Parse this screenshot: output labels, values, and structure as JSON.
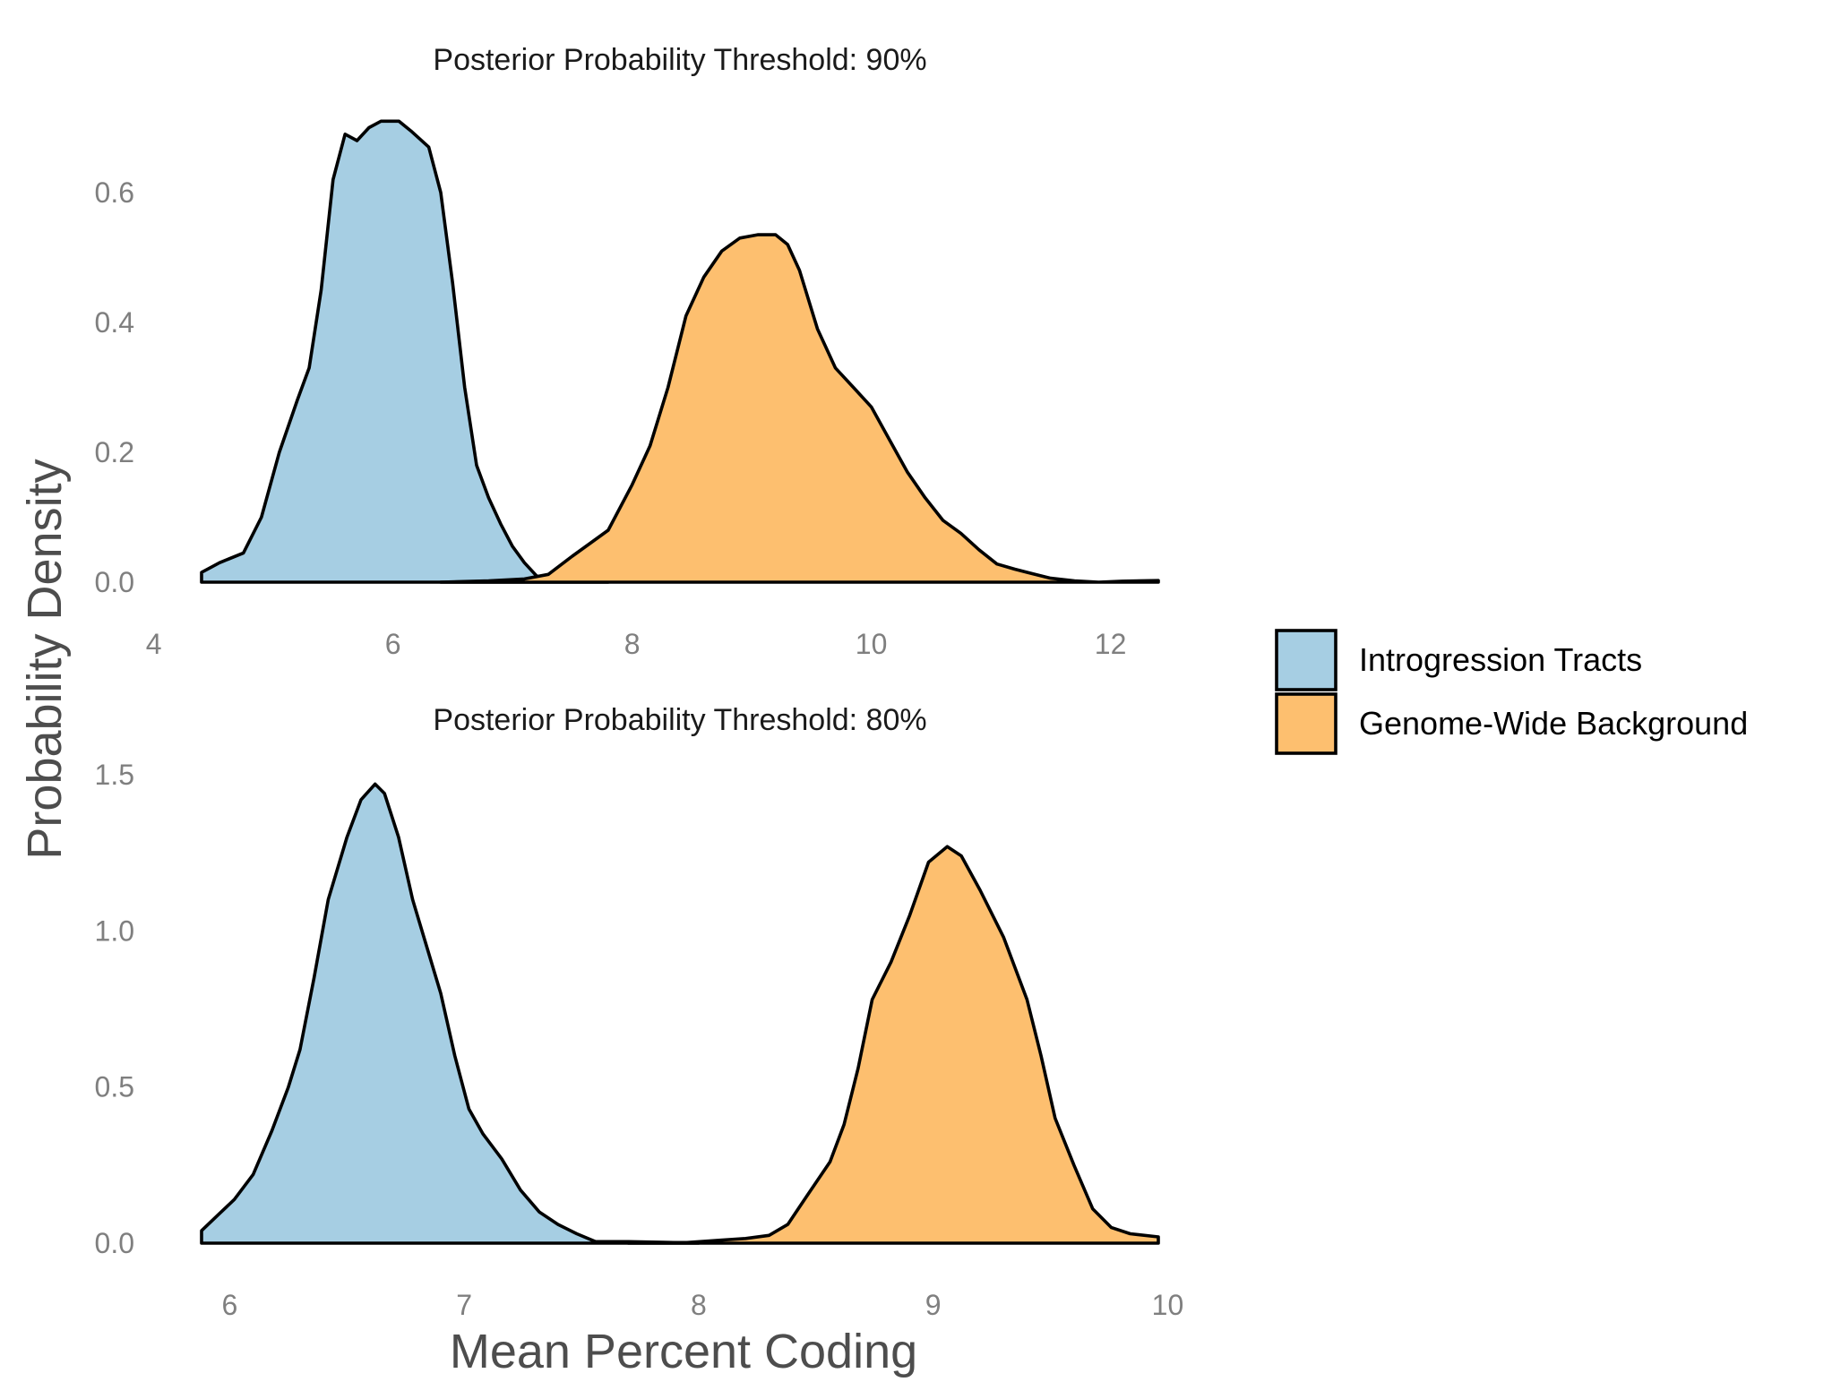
{
  "chart_data": {
    "type": "area",
    "ylabel": "Probability Density",
    "xlabel": "Mean Percent Coding",
    "legend": {
      "placement": "right",
      "entries": [
        {
          "name": "Introgression Tracts",
          "color": "#A6CEE3"
        },
        {
          "name": "Genome-Wide Background",
          "color": "#FDBF6F"
        }
      ]
    },
    "panels": [
      {
        "title": "Posterior Probability Threshold: 90%",
        "xlim": [
          4.4,
          12.4
        ],
        "ylim": [
          0,
          0.72
        ],
        "x_ticks": [
          4,
          6,
          8,
          10,
          12
        ],
        "y_ticks": [
          0.0,
          0.2,
          0.4,
          0.6
        ],
        "y_tick_labels": [
          "0.0",
          "0.2",
          "0.4",
          "0.6"
        ],
        "series": [
          {
            "name": "Introgression Tracts",
            "color": "#A6CEE3",
            "points": [
              [
                4.4,
                0.015
              ],
              [
                4.55,
                0.03
              ],
              [
                4.75,
                0.045
              ],
              [
                4.9,
                0.1
              ],
              [
                5.05,
                0.2
              ],
              [
                5.2,
                0.28
              ],
              [
                5.3,
                0.33
              ],
              [
                5.4,
                0.45
              ],
              [
                5.5,
                0.62
              ],
              [
                5.6,
                0.69
              ],
              [
                5.7,
                0.68
              ],
              [
                5.8,
                0.7
              ],
              [
                5.9,
                0.71
              ],
              [
                6.05,
                0.71
              ],
              [
                6.15,
                0.695
              ],
              [
                6.3,
                0.67
              ],
              [
                6.4,
                0.6
              ],
              [
                6.5,
                0.46
              ],
              [
                6.6,
                0.3
              ],
              [
                6.7,
                0.18
              ],
              [
                6.8,
                0.13
              ],
              [
                6.9,
                0.09
              ],
              [
                7.0,
                0.055
              ],
              [
                7.1,
                0.03
              ],
              [
                7.2,
                0.01
              ],
              [
                7.3,
                0.004
              ],
              [
                7.5,
                0.001
              ],
              [
                7.8,
                0.0
              ]
            ]
          },
          {
            "name": "Genome-Wide Background",
            "color": "#FDBF6F",
            "points": [
              [
                6.4,
                0.0
              ],
              [
                6.8,
                0.002
              ],
              [
                7.1,
                0.005
              ],
              [
                7.3,
                0.012
              ],
              [
                7.5,
                0.04
              ],
              [
                7.65,
                0.06
              ],
              [
                7.8,
                0.08
              ],
              [
                8.0,
                0.15
              ],
              [
                8.15,
                0.21
              ],
              [
                8.3,
                0.3
              ],
              [
                8.45,
                0.41
              ],
              [
                8.6,
                0.47
              ],
              [
                8.75,
                0.51
              ],
              [
                8.9,
                0.53
              ],
              [
                9.05,
                0.535
              ],
              [
                9.2,
                0.535
              ],
              [
                9.3,
                0.52
              ],
              [
                9.4,
                0.48
              ],
              [
                9.55,
                0.39
              ],
              [
                9.7,
                0.33
              ],
              [
                9.85,
                0.3
              ],
              [
                10.0,
                0.27
              ],
              [
                10.15,
                0.22
              ],
              [
                10.3,
                0.17
              ],
              [
                10.45,
                0.13
              ],
              [
                10.6,
                0.095
              ],
              [
                10.75,
                0.075
              ],
              [
                10.9,
                0.05
              ],
              [
                11.05,
                0.028
              ],
              [
                11.2,
                0.02
              ],
              [
                11.35,
                0.013
              ],
              [
                11.5,
                0.006
              ],
              [
                11.7,
                0.002
              ],
              [
                11.9,
                0.0
              ],
              [
                12.1,
                0.0015
              ],
              [
                12.4,
                0.0025
              ]
            ]
          }
        ]
      },
      {
        "title": "Posterior Probability Threshold: 80%",
        "xlim": [
          5.88,
          9.96
        ],
        "ylim": [
          0,
          1.52
        ],
        "x_ticks": [
          6,
          7,
          8,
          9,
          10
        ],
        "y_ticks": [
          0.0,
          0.5,
          1.0,
          1.5
        ],
        "y_tick_labels": [
          "0.0",
          "0.5",
          "1.0",
          "1.5"
        ],
        "series": [
          {
            "name": "Introgression Tracts",
            "color": "#A6CEE3",
            "points": [
              [
                5.88,
                0.04
              ],
              [
                5.95,
                0.09
              ],
              [
                6.02,
                0.14
              ],
              [
                6.1,
                0.22
              ],
              [
                6.18,
                0.36
              ],
              [
                6.25,
                0.5
              ],
              [
                6.3,
                0.62
              ],
              [
                6.36,
                0.85
              ],
              [
                6.42,
                1.1
              ],
              [
                6.5,
                1.3
              ],
              [
                6.56,
                1.42
              ],
              [
                6.62,
                1.47
              ],
              [
                6.66,
                1.44
              ],
              [
                6.72,
                1.3
              ],
              [
                6.78,
                1.1
              ],
              [
                6.84,
                0.95
              ],
              [
                6.9,
                0.8
              ],
              [
                6.96,
                0.6
              ],
              [
                7.02,
                0.43
              ],
              [
                7.08,
                0.35
              ],
              [
                7.16,
                0.27
              ],
              [
                7.24,
                0.17
              ],
              [
                7.32,
                0.1
              ],
              [
                7.4,
                0.06
              ],
              [
                7.48,
                0.03
              ],
              [
                7.56,
                0.005
              ],
              [
                7.7,
                0.005
              ],
              [
                7.85,
                0.003
              ],
              [
                8.0,
                0.0
              ]
            ]
          },
          {
            "name": "Genome-Wide Background",
            "color": "#FDBF6F",
            "points": [
              [
                7.7,
                0.0
              ],
              [
                7.95,
                0.002
              ],
              [
                8.1,
                0.01
              ],
              [
                8.2,
                0.015
              ],
              [
                8.3,
                0.025
              ],
              [
                8.38,
                0.06
              ],
              [
                8.46,
                0.15
              ],
              [
                8.56,
                0.26
              ],
              [
                8.62,
                0.38
              ],
              [
                8.68,
                0.56
              ],
              [
                8.74,
                0.78
              ],
              [
                8.82,
                0.9
              ],
              [
                8.9,
                1.05
              ],
              [
                8.98,
                1.22
              ],
              [
                9.06,
                1.27
              ],
              [
                9.12,
                1.24
              ],
              [
                9.2,
                1.13
              ],
              [
                9.3,
                0.98
              ],
              [
                9.4,
                0.78
              ],
              [
                9.46,
                0.6
              ],
              [
                9.52,
                0.4
              ],
              [
                9.6,
                0.25
              ],
              [
                9.68,
                0.11
              ],
              [
                9.76,
                0.05
              ],
              [
                9.84,
                0.03
              ],
              [
                9.96,
                0.02
              ]
            ]
          }
        ]
      }
    ]
  }
}
